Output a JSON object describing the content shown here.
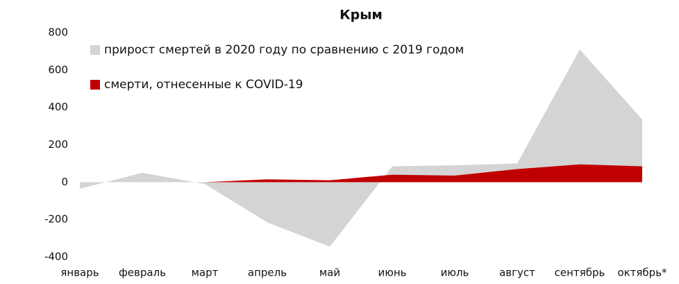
{
  "chart_data": {
    "type": "area",
    "title": "Крым",
    "categories": [
      "январь",
      "февраль",
      "март",
      "апрель",
      "май",
      "июнь",
      "июль",
      "август",
      "сентябрь",
      "октябрь*"
    ],
    "series": [
      {
        "name": "прирост смертей в 2020 году по сравнению с 2019 годом",
        "color": "#d4d4d4",
        "values": [
          -35,
          50,
          -10,
          -215,
          -345,
          85,
          90,
          100,
          710,
          335
        ]
      },
      {
        "name": "смерти, отнесенные к COVID-19",
        "color": "#c00000",
        "values": [
          null,
          null,
          0,
          15,
          10,
          40,
          35,
          70,
          95,
          85
        ]
      }
    ],
    "ylim": [
      -400,
      800
    ],
    "yticks": [
      -400,
      -200,
      0,
      200,
      400,
      600,
      800
    ],
    "grid": false,
    "legend": "top-left"
  }
}
